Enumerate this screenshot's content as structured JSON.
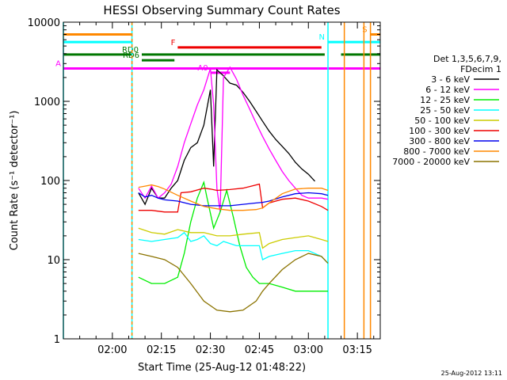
{
  "chart_data": {
    "type": "line",
    "title": "HESSI Observing Summary Count Rates",
    "xlabel": "Start Time (25-Aug-12 01:48:22)",
    "ylabel": "Count Rate (s⁻¹ detector⁻¹)",
    "ylog": true,
    "ylim": [
      1,
      10000
    ],
    "xlim_minutes": [
      105,
      202
    ],
    "x_ticks": [
      {
        "min": 120,
        "label": "02:00"
      },
      {
        "min": 135,
        "label": "02:15"
      },
      {
        "min": 150,
        "label": "02:30"
      },
      {
        "min": 165,
        "label": "02:45"
      },
      {
        "min": 180,
        "label": "03:00"
      },
      {
        "min": 195,
        "label": "03:15"
      }
    ],
    "y_ticks": [
      {
        "v": 1,
        "label": "1"
      },
      {
        "v": 10,
        "label": "10"
      },
      {
        "v": 100,
        "label": "100"
      },
      {
        "v": 1000,
        "label": "1000"
      },
      {
        "v": 10000,
        "label": "10000"
      }
    ],
    "legend_header": [
      "Det 1,3,5,6,7,9,",
      "FDecim 1"
    ],
    "series": [
      {
        "name": "3 - 6 keV",
        "color": "#000000",
        "points": [
          [
            128,
            70
          ],
          [
            130,
            50
          ],
          [
            132,
            80
          ],
          [
            134,
            60
          ],
          [
            136,
            60
          ],
          [
            138,
            80
          ],
          [
            140,
            100
          ],
          [
            142,
            180
          ],
          [
            144,
            260
          ],
          [
            146,
            300
          ],
          [
            148,
            500
          ],
          [
            150,
            1400
          ],
          [
            151,
            150
          ],
          [
            152,
            2500
          ],
          [
            154,
            2100
          ],
          [
            156,
            1700
          ],
          [
            158,
            1600
          ],
          [
            160,
            1300
          ],
          [
            162,
            1000
          ],
          [
            164,
            750
          ],
          [
            166,
            560
          ],
          [
            168,
            420
          ],
          [
            170,
            330
          ],
          [
            172,
            270
          ],
          [
            174,
            220
          ],
          [
            176,
            170
          ],
          [
            178,
            140
          ],
          [
            180,
            120
          ],
          [
            182,
            98
          ]
        ]
      },
      {
        "name": "6 - 12 keV",
        "color": "#ff00ff",
        "points": [
          [
            128,
            80
          ],
          [
            130,
            60
          ],
          [
            132,
            85
          ],
          [
            134,
            60
          ],
          [
            136,
            70
          ],
          [
            138,
            90
          ],
          [
            140,
            150
          ],
          [
            142,
            300
          ],
          [
            144,
            520
          ],
          [
            146,
            900
          ],
          [
            148,
            1400
          ],
          [
            150,
            2600
          ],
          [
            151,
            900
          ],
          [
            152,
            80
          ],
          [
            153,
            40
          ],
          [
            154,
            2000
          ],
          [
            156,
            2700
          ],
          [
            158,
            1900
          ],
          [
            160,
            1200
          ],
          [
            162,
            800
          ],
          [
            164,
            530
          ],
          [
            166,
            360
          ],
          [
            168,
            250
          ],
          [
            170,
            180
          ],
          [
            172,
            130
          ],
          [
            174,
            100
          ],
          [
            176,
            80
          ],
          [
            178,
            65
          ],
          [
            180,
            60
          ],
          [
            182,
            60
          ],
          [
            184,
            60
          ],
          [
            186,
            58
          ]
        ]
      },
      {
        "name": "12 - 25 keV",
        "color": "#00ee00",
        "points": [
          [
            128,
            6
          ],
          [
            132,
            5
          ],
          [
            136,
            5
          ],
          [
            140,
            6
          ],
          [
            142,
            12
          ],
          [
            144,
            30
          ],
          [
            146,
            60
          ],
          [
            148,
            95
          ],
          [
            149,
            60
          ],
          [
            151,
            25
          ],
          [
            153,
            40
          ],
          [
            155,
            75
          ],
          [
            157,
            35
          ],
          [
            159,
            15
          ],
          [
            161,
            8
          ],
          [
            163,
            6
          ],
          [
            165,
            5
          ],
          [
            168,
            5
          ],
          [
            172,
            4.5
          ],
          [
            176,
            4
          ],
          [
            180,
            4
          ],
          [
            184,
            4
          ],
          [
            186,
            4
          ]
        ]
      },
      {
        "name": "25 - 50 keV",
        "color": "#00ffff",
        "points": [
          [
            128,
            18
          ],
          [
            132,
            17
          ],
          [
            136,
            18
          ],
          [
            140,
            19
          ],
          [
            142,
            22
          ],
          [
            144,
            17
          ],
          [
            146,
            18
          ],
          [
            148,
            20
          ],
          [
            150,
            16
          ],
          [
            152,
            15
          ],
          [
            154,
            17
          ],
          [
            158,
            15
          ],
          [
            162,
            15
          ],
          [
            165,
            15
          ],
          [
            166,
            10
          ],
          [
            168,
            11
          ],
          [
            172,
            12
          ],
          [
            176,
            13
          ],
          [
            180,
            13
          ],
          [
            184,
            11
          ],
          [
            186,
            9
          ]
        ]
      },
      {
        "name": "50 - 100 keV",
        "color": "#cccc00",
        "points": [
          [
            128,
            25
          ],
          [
            132,
            22
          ],
          [
            136,
            21
          ],
          [
            140,
            24
          ],
          [
            144,
            22
          ],
          [
            148,
            22
          ],
          [
            152,
            20
          ],
          [
            156,
            20
          ],
          [
            160,
            21
          ],
          [
            165,
            22
          ],
          [
            166,
            14
          ],
          [
            168,
            16
          ],
          [
            172,
            18
          ],
          [
            176,
            19
          ],
          [
            180,
            20
          ],
          [
            184,
            18
          ],
          [
            186,
            17
          ]
        ]
      },
      {
        "name": "100 - 300 keV",
        "color": "#ee0000",
        "points": [
          [
            128,
            42
          ],
          [
            132,
            42
          ],
          [
            136,
            40
          ],
          [
            140,
            40
          ],
          [
            141,
            70
          ],
          [
            144,
            72
          ],
          [
            148,
            80
          ],
          [
            150,
            78
          ],
          [
            152,
            75
          ],
          [
            156,
            77
          ],
          [
            160,
            80
          ],
          [
            165,
            90
          ],
          [
            166,
            45
          ],
          [
            168,
            52
          ],
          [
            172,
            58
          ],
          [
            176,
            60
          ],
          [
            180,
            55
          ],
          [
            184,
            47
          ],
          [
            186,
            42
          ]
        ]
      },
      {
        "name": "300 - 800 keV",
        "color": "#0000ee",
        "points": [
          [
            128,
            70
          ],
          [
            130,
            62
          ],
          [
            132,
            65
          ],
          [
            134,
            60
          ],
          [
            136,
            57
          ],
          [
            140,
            55
          ],
          [
            144,
            50
          ],
          [
            148,
            48
          ],
          [
            152,
            48
          ],
          [
            156,
            48
          ],
          [
            160,
            50
          ],
          [
            164,
            52
          ],
          [
            166,
            53
          ],
          [
            168,
            55
          ],
          [
            172,
            62
          ],
          [
            176,
            68
          ],
          [
            180,
            70
          ],
          [
            184,
            68
          ],
          [
            186,
            65
          ]
        ]
      },
      {
        "name": "800 - 7000 keV",
        "color": "#ff8800",
        "points": [
          [
            128,
            82
          ],
          [
            130,
            85
          ],
          [
            132,
            88
          ],
          [
            134,
            84
          ],
          [
            136,
            78
          ],
          [
            140,
            65
          ],
          [
            144,
            55
          ],
          [
            148,
            47
          ],
          [
            152,
            44
          ],
          [
            156,
            42
          ],
          [
            160,
            42
          ],
          [
            164,
            43
          ],
          [
            166,
            45
          ],
          [
            168,
            52
          ],
          [
            172,
            68
          ],
          [
            176,
            78
          ],
          [
            180,
            80
          ],
          [
            184,
            80
          ],
          [
            186,
            75
          ]
        ]
      },
      {
        "name": "7000 - 20000 keV",
        "color": "#8b7300",
        "points": [
          [
            128,
            12
          ],
          [
            132,
            11
          ],
          [
            136,
            10
          ],
          [
            140,
            8
          ],
          [
            144,
            5
          ],
          [
            148,
            3
          ],
          [
            152,
            2.3
          ],
          [
            156,
            2.2
          ],
          [
            160,
            2.3
          ],
          [
            164,
            3
          ],
          [
            166,
            4
          ],
          [
            168,
            5
          ],
          [
            172,
            7.5
          ],
          [
            176,
            10
          ],
          [
            180,
            12
          ],
          [
            184,
            11
          ],
          [
            186,
            9
          ]
        ]
      }
    ],
    "flag_bars": [
      {
        "label": "S",
        "color": "#ff8800",
        "level": 7000,
        "segments": [
          [
            105,
            126
          ],
          [
            199,
            202
          ]
        ]
      },
      {
        "label": "N",
        "color": "#00ffff",
        "level": 5600,
        "segments": [
          [
            105,
            126
          ],
          [
            186,
            202
          ]
        ]
      },
      {
        "label": "F",
        "color": "#ee0000",
        "level": 4800,
        "segments": [
          [
            140,
            184
          ]
        ]
      },
      {
        "label": "RD0",
        "color": "#007700",
        "level": 3900,
        "segments": [
          [
            105,
            126
          ],
          [
            129,
            185
          ],
          [
            190,
            202
          ]
        ]
      },
      {
        "label": "RD6",
        "color": "#007700",
        "level": 3300,
        "segments": [
          [
            129,
            139
          ]
        ]
      },
      {
        "label": "A",
        "color": "#ff00ff",
        "level": 2600,
        "segments": [
          [
            105,
            202
          ]
        ]
      },
      {
        "label": "A0",
        "color": "#ff00ff",
        "level": 2300,
        "segments": [
          [
            150,
            156
          ]
        ]
      }
    ],
    "vlines": [
      {
        "min": 105,
        "color": "#00ffff"
      },
      {
        "min": 126,
        "color": "#00ffff"
      },
      {
        "min": 126,
        "color": "#ff8800",
        "dashed": true
      },
      {
        "min": 186,
        "color": "#00ffff"
      },
      {
        "min": 191,
        "color": "#ff8800"
      },
      {
        "min": 197,
        "color": "#ff8800"
      },
      {
        "min": 199,
        "color": "#ff8800"
      }
    ]
  },
  "footer": {
    "timestamp": "25-Aug-2012 13:11"
  }
}
